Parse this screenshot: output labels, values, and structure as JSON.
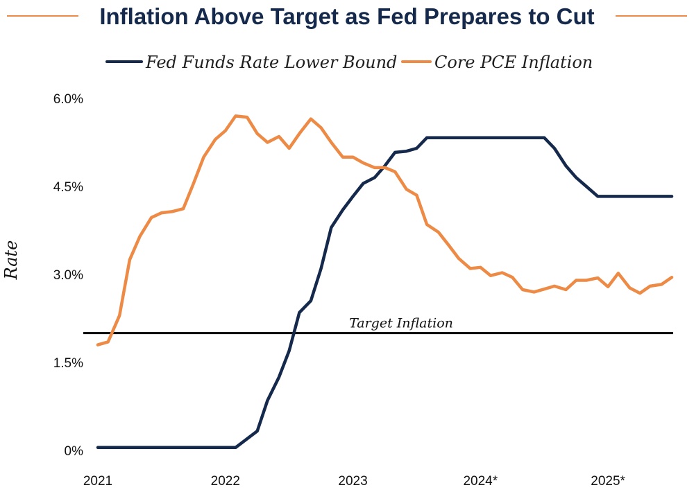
{
  "chart_data": {
    "type": "line",
    "title": "Inflation Above Target as Fed Prepares to Cut",
    "xlabel": "",
    "ylabel": "Rate",
    "xlim": [
      2021.0,
      2025.5
    ],
    "ylim": [
      0.0,
      6.0
    ],
    "y_ticks": [
      {
        "value": 0.0,
        "label": "0%"
      },
      {
        "value": 1.5,
        "label": "1.5%"
      },
      {
        "value": 3.0,
        "label": "3.0%"
      },
      {
        "value": 4.5,
        "label": "4.5%"
      },
      {
        "value": 6.0,
        "label": "6.0%"
      }
    ],
    "x_ticks": [
      {
        "value": 2021,
        "label": "2021"
      },
      {
        "value": 2022,
        "label": "2022"
      },
      {
        "value": 2023,
        "label": "2023"
      },
      {
        "value": 2024,
        "label": "2024*"
      },
      {
        "value": 2025,
        "label": "2025*"
      }
    ],
    "legend_position": "top",
    "grid": false,
    "series": [
      {
        "name": "Fed Funds Rate Lower Bound",
        "color": "#14294b",
        "x": [
          2021.0,
          2022.08,
          2022.25,
          2022.33,
          2022.42,
          2022.5,
          2022.58,
          2022.67,
          2022.75,
          2022.83,
          2022.92,
          2023.0,
          2023.08,
          2023.17,
          2023.25,
          2023.33,
          2023.42,
          2023.5,
          2023.58,
          2023.67,
          2024.0,
          2024.5,
          2024.58,
          2024.67,
          2024.75,
          2024.83,
          2024.92,
          2025.0,
          2025.5
        ],
        "y": [
          0.05,
          0.05,
          0.33,
          0.85,
          1.25,
          1.7,
          2.35,
          2.55,
          3.1,
          3.8,
          4.1,
          4.33,
          4.55,
          4.65,
          4.85,
          5.08,
          5.1,
          5.15,
          5.33,
          5.33,
          5.33,
          5.33,
          5.15,
          4.85,
          4.65,
          4.5,
          4.33,
          4.33,
          4.33
        ]
      },
      {
        "name": "Core PCE Inflation",
        "color": "#ed8a45",
        "x": [
          2021.0,
          2021.08,
          2021.17,
          2021.25,
          2021.33,
          2021.42,
          2021.5,
          2021.58,
          2021.67,
          2021.75,
          2021.83,
          2021.92,
          2022.0,
          2022.08,
          2022.17,
          2022.25,
          2022.33,
          2022.42,
          2022.5,
          2022.58,
          2022.67,
          2022.75,
          2022.83,
          2022.92,
          2023.0,
          2023.08,
          2023.17,
          2023.25,
          2023.33,
          2023.42,
          2023.5,
          2023.58,
          2023.67,
          2023.75,
          2023.83,
          2023.92,
          2024.0,
          2024.08,
          2024.17,
          2024.25,
          2024.33,
          2024.42,
          2024.5,
          2024.58,
          2024.67,
          2024.75,
          2024.83,
          2024.92,
          2025.0,
          2025.08,
          2025.17,
          2025.25,
          2025.33,
          2025.42,
          2025.5
        ],
        "y": [
          1.8,
          1.85,
          2.3,
          3.25,
          3.65,
          3.97,
          4.05,
          4.07,
          4.12,
          4.55,
          5.0,
          5.3,
          5.45,
          5.7,
          5.68,
          5.4,
          5.25,
          5.35,
          5.15,
          5.4,
          5.65,
          5.5,
          5.25,
          5.0,
          5.0,
          4.9,
          4.82,
          4.82,
          4.75,
          4.45,
          4.35,
          3.85,
          3.72,
          3.5,
          3.27,
          3.1,
          3.12,
          2.98,
          3.03,
          2.95,
          2.74,
          2.7,
          2.75,
          2.8,
          2.74,
          2.9,
          2.9,
          2.94,
          2.79,
          3.02,
          2.77,
          2.68,
          2.8,
          2.83,
          2.95
        ]
      }
    ],
    "reference_lines": [
      {
        "orientation": "horizontal",
        "value": 2.0,
        "label": "Target Inflation",
        "color": "#000000"
      }
    ]
  }
}
